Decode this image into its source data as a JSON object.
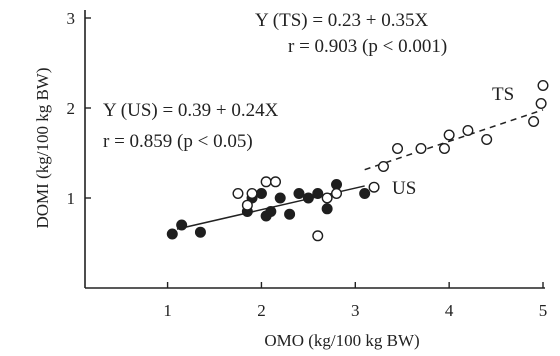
{
  "chart_data": {
    "type": "scatter",
    "xlabel": "OMO (kg/100 kg BW)",
    "ylabel": "DOMI (kg/100 kg BW)",
    "xlim": [
      0.12,
      5.0
    ],
    "ylim": [
      0.0,
      3.0
    ],
    "xticks": [
      "1",
      "2",
      "3",
      "4",
      "5"
    ],
    "yticks": [
      "1",
      "2",
      "3"
    ],
    "grid": false,
    "annotations": {
      "ts_equation": "Y (TS) = 0.23 + 0.35X",
      "ts_r": "r = 0.903 (p < 0.001)",
      "us_equation": "Y (US) = 0.39 + 0.24X",
      "us_r": "r = 0.859 (p < 0.05)"
    },
    "series_labels": {
      "ts": "TS",
      "us": "US"
    },
    "regression_lines": [
      {
        "id": "us",
        "intercept": 0.39,
        "slope": 0.24,
        "x_range": [
          1.1,
          3.1
        ],
        "style": "solid"
      },
      {
        "id": "ts",
        "intercept": 0.23,
        "slope": 0.35,
        "x_range": [
          3.1,
          5.0
        ],
        "style": "dashed"
      }
    ],
    "series": [
      {
        "marker": "filled",
        "points": [
          [
            1.05,
            0.6
          ],
          [
            1.15,
            0.7
          ],
          [
            1.35,
            0.62
          ],
          [
            1.85,
            0.85
          ],
          [
            1.9,
            1.0
          ],
          [
            2.0,
            1.05
          ],
          [
            2.05,
            0.8
          ],
          [
            2.1,
            0.85
          ],
          [
            2.2,
            1.0
          ],
          [
            2.3,
            0.82
          ],
          [
            2.4,
            1.05
          ],
          [
            2.5,
            1.0
          ],
          [
            2.6,
            1.05
          ],
          [
            2.7,
            0.88
          ],
          [
            2.8,
            1.15
          ],
          [
            3.1,
            1.05
          ]
        ]
      },
      {
        "marker": "open",
        "points": [
          [
            1.75,
            1.05
          ],
          [
            1.85,
            0.92
          ],
          [
            1.9,
            1.05
          ],
          [
            2.05,
            1.18
          ],
          [
            2.15,
            1.18
          ],
          [
            2.6,
            0.58
          ],
          [
            2.7,
            1.0
          ],
          [
            2.8,
            1.05
          ],
          [
            3.2,
            1.12
          ],
          [
            3.3,
            1.35
          ],
          [
            3.45,
            1.55
          ],
          [
            3.7,
            1.55
          ],
          [
            3.95,
            1.55
          ],
          [
            4.0,
            1.7
          ],
          [
            4.2,
            1.75
          ],
          [
            4.4,
            1.65
          ],
          [
            4.9,
            1.85
          ],
          [
            4.98,
            2.05
          ],
          [
            5.0,
            2.25
          ]
        ]
      }
    ]
  }
}
